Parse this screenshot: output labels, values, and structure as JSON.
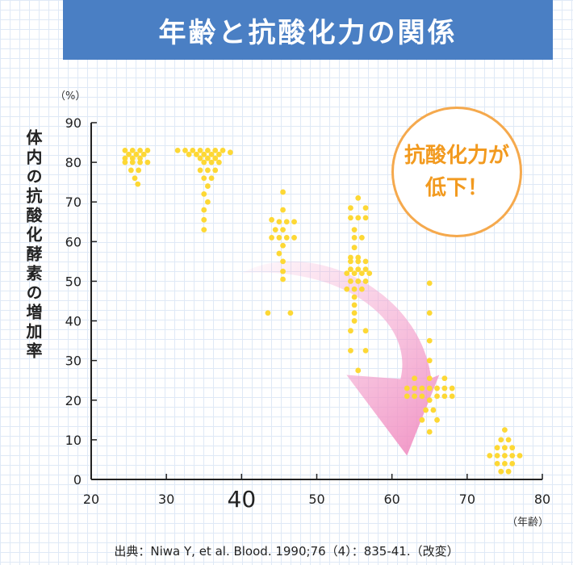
{
  "title": "年齢と抗酸化力の関係",
  "callout": {
    "line1": "抗酸化力が",
    "line2": "低下！"
  },
  "source": "出典：Niwa Y, et al. Blood. 1990;76（4）：835-41.（改変）",
  "colors": {
    "banner": "#4a7fc4",
    "points": "#fdd835",
    "arrow": "#f4a6cf",
    "callout": "#f29a1f"
  },
  "chart_data": {
    "type": "scatter",
    "title": "年齢と抗酸化力の関係",
    "xlabel": "（年齢）",
    "ylabel": "体内の抗酸化酵素の増加率",
    "yunit": "（%）",
    "xlim": [
      20,
      80
    ],
    "ylim": [
      0,
      90
    ],
    "xticks": [
      "20",
      "30",
      "40",
      "50",
      "60",
      "70",
      "80"
    ],
    "yticks": [
      "0",
      "10",
      "20",
      "30",
      "40",
      "50",
      "60",
      "70",
      "80",
      "90"
    ],
    "trend_arrow": {
      "from": [
        40,
        52
      ],
      "to": [
        62,
        6
      ]
    },
    "points": [
      [
        24.5,
        83
      ],
      [
        25.5,
        83
      ],
      [
        26.5,
        83
      ],
      [
        27.5,
        83
      ],
      [
        25,
        82
      ],
      [
        26,
        82
      ],
      [
        27,
        82
      ],
      [
        24.5,
        81
      ],
      [
        25.5,
        81
      ],
      [
        26.5,
        81
      ],
      [
        24.5,
        80
      ],
      [
        25.5,
        80
      ],
      [
        26.5,
        80
      ],
      [
        27.5,
        80
      ],
      [
        25.3,
        78
      ],
      [
        26.3,
        78
      ],
      [
        25.8,
        76
      ],
      [
        26.2,
        74.5
      ],
      [
        31.5,
        83
      ],
      [
        32.5,
        83
      ],
      [
        33.5,
        83
      ],
      [
        34.5,
        83
      ],
      [
        35.5,
        83
      ],
      [
        36.5,
        83
      ],
      [
        37.5,
        83
      ],
      [
        38.5,
        82.5
      ],
      [
        33,
        82
      ],
      [
        34,
        82
      ],
      [
        35,
        82
      ],
      [
        36,
        82
      ],
      [
        37,
        82
      ],
      [
        34.5,
        81
      ],
      [
        35.5,
        81
      ],
      [
        36.5,
        81
      ],
      [
        35,
        80
      ],
      [
        36,
        80
      ],
      [
        37,
        80
      ],
      [
        34.5,
        78
      ],
      [
        35.5,
        78
      ],
      [
        36.5,
        78
      ],
      [
        35,
        76
      ],
      [
        36,
        76
      ],
      [
        35.5,
        74
      ],
      [
        35,
        72
      ],
      [
        35.5,
        70
      ],
      [
        35,
        68
      ],
      [
        35,
        65.5
      ],
      [
        35,
        63
      ],
      [
        45.5,
        72.5
      ],
      [
        45.5,
        68
      ],
      [
        44,
        65.5
      ],
      [
        45,
        65
      ],
      [
        46,
        65
      ],
      [
        47,
        65
      ],
      [
        44.5,
        63
      ],
      [
        45.5,
        63
      ],
      [
        44,
        61
      ],
      [
        45,
        61
      ],
      [
        46,
        61
      ],
      [
        47,
        61
      ],
      [
        45.5,
        59
      ],
      [
        45,
        57
      ],
      [
        45.5,
        55
      ],
      [
        45.5,
        52.5
      ],
      [
        45.5,
        50.5
      ],
      [
        43.5,
        42
      ],
      [
        46.5,
        42
      ],
      [
        55.5,
        71
      ],
      [
        54.5,
        68.5
      ],
      [
        56.5,
        68.5
      ],
      [
        54.5,
        66
      ],
      [
        55.5,
        66
      ],
      [
        56.5,
        66
      ],
      [
        55,
        63
      ],
      [
        55,
        61
      ],
      [
        56,
        61
      ],
      [
        55,
        58.5
      ],
      [
        54.5,
        56
      ],
      [
        55.5,
        56
      ],
      [
        54.5,
        55
      ],
      [
        55.5,
        55
      ],
      [
        56.5,
        55
      ],
      [
        54.5,
        53
      ],
      [
        55.5,
        53
      ],
      [
        56.5,
        53
      ],
      [
        54,
        52
      ],
      [
        55,
        52
      ],
      [
        56,
        52
      ],
      [
        57,
        52
      ],
      [
        54.5,
        50
      ],
      [
        55.5,
        50
      ],
      [
        56.5,
        50
      ],
      [
        54,
        48
      ],
      [
        55,
        48
      ],
      [
        56,
        48
      ],
      [
        55,
        46
      ],
      [
        55,
        44
      ],
      [
        55,
        42
      ],
      [
        55,
        40
      ],
      [
        54.5,
        37.5
      ],
      [
        56.5,
        37.5
      ],
      [
        54.5,
        32.5
      ],
      [
        56.5,
        32.5
      ],
      [
        55.5,
        27.5
      ],
      [
        65,
        49.5
      ],
      [
        65,
        42
      ],
      [
        65,
        35
      ],
      [
        65,
        30
      ],
      [
        63,
        25.5
      ],
      [
        65,
        25.5
      ],
      [
        67,
        25.5
      ],
      [
        62,
        23
      ],
      [
        63,
        23
      ],
      [
        64,
        23
      ],
      [
        65,
        23
      ],
      [
        66,
        23
      ],
      [
        67,
        23
      ],
      [
        68,
        23
      ],
      [
        62,
        21
      ],
      [
        63,
        21
      ],
      [
        64,
        21
      ],
      [
        66,
        21
      ],
      [
        67,
        21
      ],
      [
        68,
        21
      ],
      [
        65,
        20
      ],
      [
        64.5,
        17.5
      ],
      [
        65.5,
        17.5
      ],
      [
        64,
        15
      ],
      [
        66,
        15
      ],
      [
        65,
        12
      ],
      [
        75,
        12.5
      ],
      [
        74.5,
        10
      ],
      [
        75.5,
        10
      ],
      [
        74,
        8
      ],
      [
        75,
        8
      ],
      [
        76,
        8
      ],
      [
        73,
        6
      ],
      [
        74,
        6
      ],
      [
        75,
        6
      ],
      [
        76,
        6
      ],
      [
        77,
        6
      ],
      [
        74,
        4
      ],
      [
        75,
        4
      ],
      [
        76,
        4
      ],
      [
        74.5,
        2
      ],
      [
        75.5,
        2
      ]
    ]
  }
}
